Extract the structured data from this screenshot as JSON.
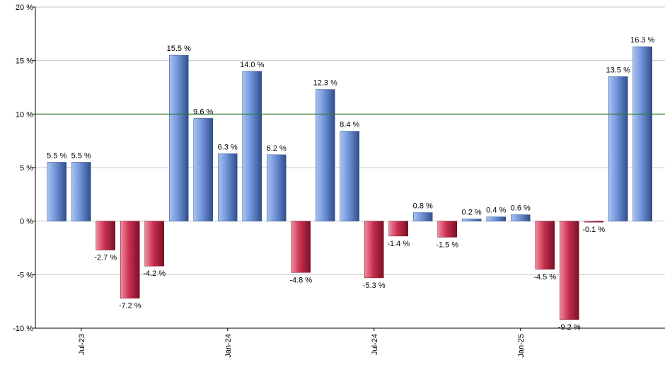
{
  "chart_data": {
    "type": "bar",
    "values": [
      5.5,
      5.5,
      -2.7,
      -7.2,
      -4.2,
      15.5,
      9.6,
      6.3,
      14.0,
      6.2,
      -4.8,
      12.3,
      8.4,
      -5.3,
      -1.4,
      0.8,
      -1.5,
      0.2,
      0.4,
      0.6,
      -4.5,
      -9.2,
      -0.1,
      13.5,
      16.3
    ],
    "value_labels": [
      "5.5 %",
      "5.5 %",
      "-2.7 %",
      "-7.2 %",
      "-4.2 %",
      "15.5 %",
      "9.6 %",
      "6.3 %",
      "14.0 %",
      "6.2 %",
      "-4.8 %",
      "12.3 %",
      "8.4 %",
      "-5.3 %",
      "-1.4 %",
      "0.8 %",
      "-1.5 %",
      "0.2 %",
      "0.4 %",
      "0.6 %",
      "-4.5 %",
      "-9.2 %",
      "-0.1 %",
      "13.5 %",
      "16.3 %"
    ],
    "x_tick_labels": [
      {
        "bar_index": 1,
        "label": "Jul-23"
      },
      {
        "bar_index": 7,
        "label": "Jan-24"
      },
      {
        "bar_index": 13,
        "label": "Jul-24"
      },
      {
        "bar_index": 19,
        "label": "Jan-25"
      }
    ],
    "y_ticks": [
      {
        "value": 20,
        "label": "20 %"
      },
      {
        "value": 15,
        "label": "15 %"
      },
      {
        "value": 10,
        "label": "10 %"
      },
      {
        "value": 5,
        "label": "5 %"
      },
      {
        "value": 0,
        "label": "0 %"
      },
      {
        "value": -5,
        "label": "-5 %"
      },
      {
        "value": -10,
        "label": "-10 %"
      }
    ],
    "ylim": [
      -10,
      20
    ],
    "reference_line": {
      "value": 10,
      "color": "#2e7d2e"
    },
    "grid": true,
    "title": "",
    "xlabel": "",
    "ylabel": "",
    "colors": {
      "positive_light": "#a9c4f2",
      "positive_mid": "#6f93d8",
      "positive_dark": "#2f4d8a",
      "negative_light": "#f08ea2",
      "negative_mid": "#c9304f",
      "negative_dark": "#7a1025",
      "grid": "#c8c8c8",
      "axis": "#000000"
    }
  }
}
